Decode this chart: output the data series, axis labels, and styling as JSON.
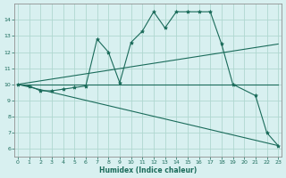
{
  "xlabel": "Humidex (Indice chaleur)",
  "bg_color": "#d8f0f0",
  "grid_color": "#b0d8d0",
  "line_color": "#1a6b5a",
  "series": [
    {
      "x": [
        0,
        1,
        2,
        3,
        4,
        5,
        6,
        7,
        8,
        9,
        10,
        11,
        12,
        13,
        14,
        15,
        16,
        17,
        18,
        19,
        21,
        22,
        23
      ],
      "y": [
        10,
        9.9,
        9.6,
        9.6,
        9.7,
        9.8,
        9.9,
        12.8,
        12.0,
        10.1,
        12.6,
        13.3,
        14.5,
        13.5,
        14.5,
        14.5,
        14.5,
        14.5,
        12.5,
        10.0,
        9.3,
        7.0,
        6.2
      ],
      "marker": "*"
    },
    {
      "x": [
        0,
        23
      ],
      "y": [
        10,
        12.5
      ],
      "marker": null
    },
    {
      "x": [
        0,
        23
      ],
      "y": [
        10,
        6.2
      ],
      "marker": null
    },
    {
      "x": [
        0,
        23
      ],
      "y": [
        10,
        10.0
      ],
      "marker": null
    }
  ],
  "xlim": [
    -0.3,
    23.3
  ],
  "ylim": [
    5.5,
    15.0
  ],
  "yticks": [
    6,
    7,
    8,
    9,
    10,
    11,
    12,
    13,
    14
  ],
  "xticks": [
    0,
    1,
    2,
    3,
    4,
    5,
    6,
    7,
    8,
    9,
    10,
    11,
    12,
    13,
    14,
    15,
    16,
    17,
    18,
    19,
    20,
    21,
    22,
    23
  ]
}
